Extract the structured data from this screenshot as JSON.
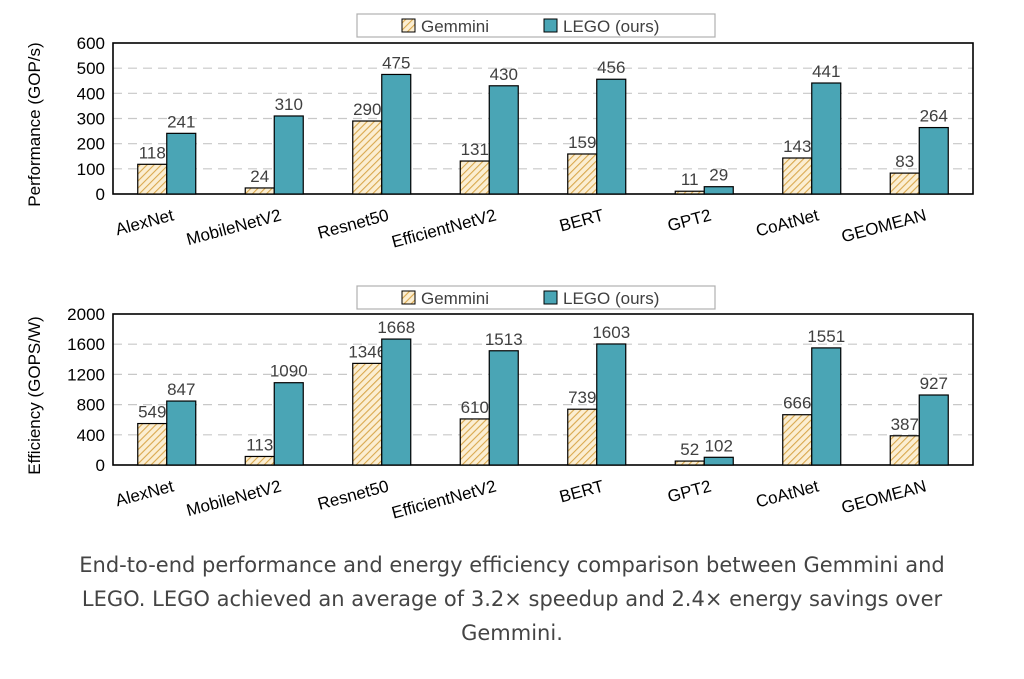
{
  "chart_data": [
    {
      "type": "bar",
      "categories": [
        "AlexNet",
        "MobileNetV2",
        "Resnet50",
        "EfficientNetV2",
        "BERT",
        "GPT2",
        "CoAtNet",
        "GEOMEAN"
      ],
      "series": [
        {
          "name": "Gemmini",
          "values": [
            118,
            24,
            290,
            131,
            159,
            11,
            143,
            83
          ],
          "color": "#e8c170",
          "pattern": "diagonal-hatch"
        },
        {
          "name": "LEGO (ours)",
          "values": [
            241,
            310,
            475,
            430,
            456,
            29,
            441,
            264
          ],
          "color": "#4aa5b5"
        }
      ],
      "ylabel": "Performance (GOP/s)",
      "ylim": [
        0,
        600
      ],
      "yticks": [
        0,
        100,
        200,
        300,
        400,
        500,
        600
      ],
      "grid": true,
      "legend": "top"
    },
    {
      "type": "bar",
      "categories": [
        "AlexNet",
        "MobileNetV2",
        "Resnet50",
        "EfficientNetV2",
        "BERT",
        "GPT2",
        "CoAtNet",
        "GEOMEAN"
      ],
      "series": [
        {
          "name": "Gemmini",
          "values": [
            549,
            113,
            1346,
            610,
            739,
            52,
            666,
            387
          ],
          "color": "#e8c170",
          "pattern": "diagonal-hatch"
        },
        {
          "name": "LEGO (ours)",
          "values": [
            847,
            1090,
            1668,
            1513,
            1603,
            102,
            1551,
            927
          ],
          "color": "#4aa5b5"
        }
      ],
      "ylabel": "Efficiency (GOPS/W)",
      "ylim": [
        0,
        2000
      ],
      "yticks": [
        0,
        400,
        800,
        1200,
        1600,
        2000
      ],
      "grid": true,
      "legend": "top"
    }
  ],
  "caption": {
    "line1": "End-to-end performance and energy efficiency comparison between Gemmini and",
    "line2": "LEGO. LEGO achieved an average of 3.2× speedup and 2.4× energy savings over",
    "line3": "Gemmini."
  }
}
